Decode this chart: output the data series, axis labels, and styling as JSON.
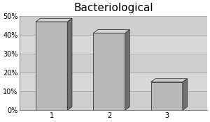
{
  "title": "Bacteriological",
  "categories": [
    "1",
    "2",
    "3"
  ],
  "values": [
    0.47,
    0.41,
    0.15
  ],
  "bar_color_face": "#B8B8B8",
  "bar_color_side": "#707070",
  "bar_color_top": "#D0D0D0",
  "bar_edge_color": "#333333",
  "plot_bg_color": "#D8D8D8",
  "plot_bg_stripe": "#C8C8C8",
  "left_wall_color": "#C0C0C0",
  "floor_color": "#AAAAAA",
  "fig_bg_color": "#FFFFFF",
  "ylim": [
    0.0,
    0.5
  ],
  "yticks": [
    0.0,
    0.1,
    0.2,
    0.3,
    0.4,
    0.5
  ],
  "ytick_labels": [
    "0%",
    "10%",
    "20%",
    "30%",
    "40%",
    "50%"
  ],
  "title_fontsize": 11,
  "tick_fontsize": 7,
  "bar_width": 0.55,
  "depth": 0.08,
  "grid_color": "#AAAAAA",
  "spine_color": "#888888"
}
